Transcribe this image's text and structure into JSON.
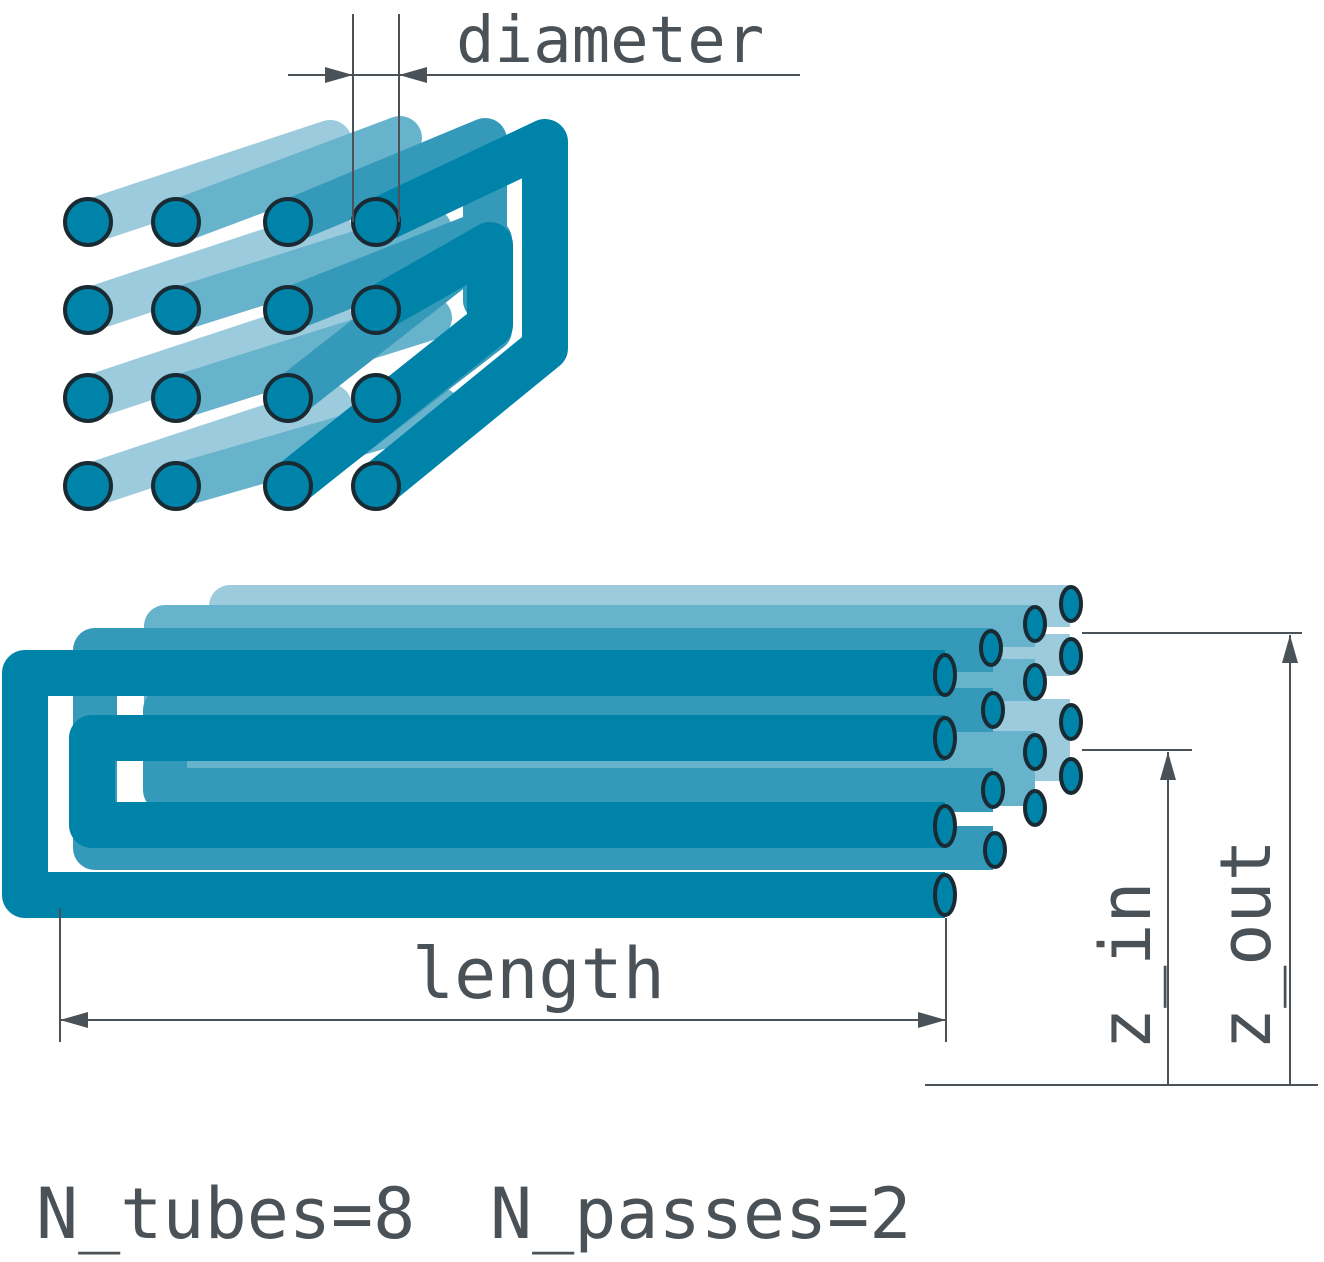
{
  "labels": {
    "diameter": "diameter",
    "length": "length",
    "z_in": "z_in",
    "z_out": "z_out",
    "n_tubes": "N_tubes=8",
    "n_passes": "N_passes=2"
  },
  "colors": {
    "tube_dark": "#0083a9",
    "tube_mid": "#3599ba",
    "tube_light": "#68b3cc",
    "tube_lighter": "#9bcbdc",
    "outline": "#1a2a33",
    "dimension_line": "#4a5257",
    "background": "#ffffff"
  }
}
